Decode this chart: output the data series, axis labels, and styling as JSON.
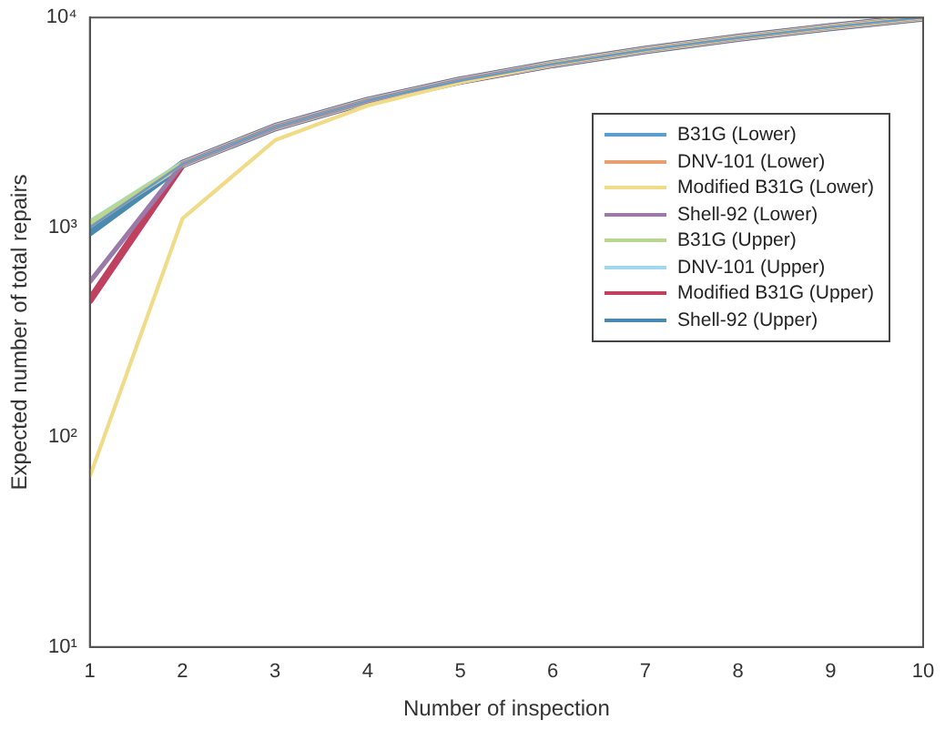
{
  "chart_data": {
    "type": "line",
    "xlabel": "Number of inspection",
    "ylabel": "Expected number of total repairs",
    "x": [
      1,
      2,
      3,
      4,
      5,
      6,
      7,
      8,
      9,
      10
    ],
    "series": [
      {
        "name": "B31G (Lower)",
        "color": "#5a9fd0",
        "values": [
          1000,
          2000,
          3000,
          4000,
          5000,
          6000,
          7000,
          8000,
          9000,
          10000
        ]
      },
      {
        "name": "DNV-101 (Lower)",
        "color": "#e8a070",
        "values": [
          1000,
          2000,
          3000,
          4000,
          5000,
          6000,
          7000,
          8000,
          9000,
          10000
        ]
      },
      {
        "name": "Modified B31G (Lower)",
        "color": "#f0dc88",
        "values": [
          65,
          1100,
          2600,
          3800,
          4900,
          6000,
          7000,
          8000,
          9000,
          10000
        ]
      },
      {
        "name": "Shell-92 (Lower)",
        "color": "#9a7aa8",
        "values": [
          550,
          2000,
          3000,
          4000,
          5000,
          6000,
          7000,
          8000,
          9000,
          10000
        ]
      },
      {
        "name": "B31G (Upper)",
        "color": "#b8d890",
        "values": [
          1050,
          2000,
          3000,
          4000,
          5000,
          6000,
          7000,
          8000,
          9000,
          10000
        ]
      },
      {
        "name": "DNV-101 (Upper)",
        "color": "#a0d8f0",
        "values": [
          1050,
          2000,
          3000,
          4000,
          5000,
          6000,
          7000,
          8000,
          9000,
          10000
        ]
      },
      {
        "name": "Modified B31G (Upper)",
        "color": "#c04060",
        "values": [
          450,
          2000,
          3000,
          4000,
          5000,
          6000,
          7000,
          8000,
          9000,
          10000
        ]
      },
      {
        "name": "Shell-92 (Upper)",
        "color": "#4a8ab0",
        "values": [
          950,
          2000,
          3000,
          4000,
          5000,
          6000,
          7000,
          8000,
          9000,
          10000
        ]
      }
    ],
    "xlim": [
      1,
      10
    ],
    "xticks": [
      1,
      2,
      3,
      4,
      5,
      6,
      7,
      8,
      9,
      10
    ],
    "ylim": [
      10,
      10000
    ],
    "yticks": [
      {
        "value": 10,
        "label": "10¹"
      },
      {
        "value": 100,
        "label": "10²"
      },
      {
        "value": 1000,
        "label": "10³"
      },
      {
        "value": 10000,
        "label": "10⁴"
      }
    ],
    "log": "y",
    "grid": false,
    "legend": "top right",
    "marker": "none",
    "line_style": "solid"
  }
}
